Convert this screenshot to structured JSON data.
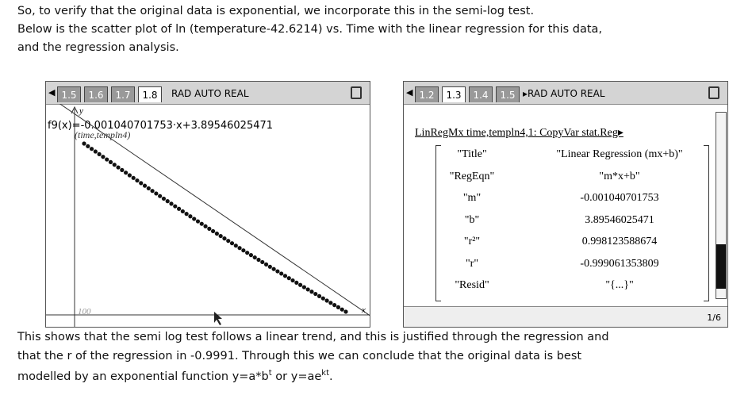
{
  "intro": {
    "lines": [
      "So, to verify that the original data is exponential, we incorporate this in the semi-log test.",
      " Below is the scatter plot of ln (temperature-42.6214) vs. Time with the linear regression for this data,",
      "and the regression analysis."
    ]
  },
  "graph_screen": {
    "tabs": [
      "1.5",
      "1.6",
      "1.7",
      "1.8"
    ],
    "status": "RAD AUTO REAL",
    "function_label": "f9(x)=-0.001040701753·x+3.89546025471",
    "plot_label": "(time,templn4)",
    "y_axis_label": "y",
    "x_axis_label": "x",
    "x_axis_value": "100"
  },
  "calc_screen": {
    "tabs": [
      "1.2",
      "1.3",
      "1.4",
      "1.5"
    ],
    "status": "▸RAD AUTO REAL",
    "command": "LinRegMx time,templn4,1: CopyVar stat.Reg▸",
    "rows": [
      [
        "\"Title\"",
        "\"Linear Regression (mx+b)\""
      ],
      [
        "\"RegEqn\"",
        "\"m*x+b\""
      ],
      [
        "\"m\"",
        "-0.001040701753"
      ],
      [
        "\"b\"",
        "3.89546025471"
      ],
      [
        "\"r²\"",
        "0.998123588674"
      ],
      [
        "\"r\"",
        "-0.999061353809"
      ],
      [
        "\"Resid\"",
        "\"{...}\""
      ]
    ],
    "page": "1/6"
  },
  "conclusion": {
    "lines": [
      "This shows that the semi log test follows a linear trend, and this is justified through the regression and",
      "that the r of the regression in -0.9991. Through this we can conclude that the original data is best"
    ],
    "last_line": [
      "modelled by an exponential function y=a*b",
      "t",
      " or y=ae",
      "kt",
      "."
    ]
  }
}
